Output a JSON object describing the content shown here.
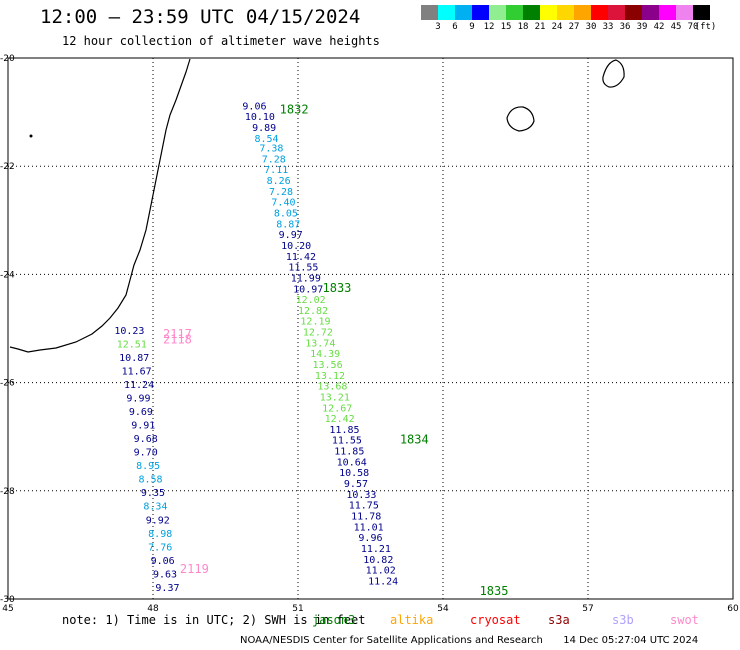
{
  "header": {
    "title": "12:00 — 23:59 UTC 04/15/2024",
    "subtitle": "12 hour collection of altimeter wave heights"
  },
  "legend": {
    "colors": [
      "#808080",
      "#00ffff",
      "#00b0f0",
      "#0000ff",
      "#90ee90",
      "#32cd32",
      "#008000",
      "#ffff00",
      "#ffd700",
      "#ffa500",
      "#ff0000",
      "#dc143c",
      "#8b0000",
      "#8b008b",
      "#ff00ff",
      "#ee82ee",
      "#000000"
    ],
    "labels": [
      "3",
      "6",
      "9",
      "12",
      "15",
      "18",
      "21",
      "24",
      "27",
      "30",
      "33",
      "36",
      "39",
      "42",
      "45",
      "70",
      "(ft)"
    ]
  },
  "axes": {
    "lon_ticks": [
      "45",
      "48",
      "51",
      "54",
      "57",
      "60"
    ],
    "lat_ticks": [
      "-20",
      "-22",
      "-24",
      "-26",
      "-28",
      "-30"
    ]
  },
  "tracks": [
    {
      "label": "1832",
      "label_color": "#008000",
      "x": 50.0,
      "y": -20.95
    },
    {
      "label": "1833",
      "label_color": "#008000",
      "x": 51.3,
      "y": -24.25
    },
    {
      "label": "1834",
      "label_color": "#008000",
      "x": 52.9,
      "y": -27.05
    },
    {
      "label": "1835",
      "label_color": "#008000",
      "x": 54.55,
      "y": -29.85
    },
    {
      "label": "2117",
      "label_color": "#ff88cc",
      "x": 48.0,
      "y": -25.1
    },
    {
      "label": "2118",
      "label_color": "#ff88cc",
      "x": 48.0,
      "y": -25.2
    },
    {
      "label": "2119",
      "label_color": "#ff88cc",
      "x": 48.35,
      "y": -29.45
    }
  ],
  "readings": [
    {
      "value": "9.06",
      "color": "#00008b",
      "x": 49.85,
      "y": -20.95
    },
    {
      "value": "10.10",
      "color": "#00008b",
      "x": 49.9,
      "y": -21.15
    },
    {
      "value": "9.89",
      "color": "#00008b",
      "x": 50.05,
      "y": -21.35
    },
    {
      "value": "8.54",
      "color": "#00a0e0",
      "x": 50.1,
      "y": -21.55
    },
    {
      "value": "7.38",
      "color": "#00a0e0",
      "x": 50.2,
      "y": -21.73
    },
    {
      "value": "7.28",
      "color": "#00a0e0",
      "x": 50.25,
      "y": -21.93
    },
    {
      "value": "7.11",
      "color": "#00a0e0",
      "x": 50.3,
      "y": -22.13
    },
    {
      "value": "8.26",
      "color": "#00a0e0",
      "x": 50.35,
      "y": -22.33
    },
    {
      "value": "7.28",
      "color": "#00a0e0",
      "x": 50.4,
      "y": -22.53
    },
    {
      "value": "7.40",
      "color": "#00a0e0",
      "x": 50.45,
      "y": -22.73
    },
    {
      "value": "8.05",
      "color": "#00a0e0",
      "x": 50.5,
      "y": -22.93
    },
    {
      "value": "8.87",
      "color": "#00a0e0",
      "x": 50.55,
      "y": -23.13
    },
    {
      "value": "9.97",
      "color": "#00008b",
      "x": 50.6,
      "y": -23.33
    },
    {
      "value": "10.20",
      "color": "#00008b",
      "x": 50.65,
      "y": -23.53
    },
    {
      "value": "11.42",
      "color": "#00008b",
      "x": 50.75,
      "y": -23.73
    },
    {
      "value": "11.55",
      "color": "#00008b",
      "x": 50.8,
      "y": -23.93
    },
    {
      "value": "11.99",
      "color": "#00008b",
      "x": 50.85,
      "y": -24.13
    },
    {
      "value": "10.97",
      "color": "#00008b",
      "x": 50.9,
      "y": -24.33
    },
    {
      "value": "12.02",
      "color": "#66dd44",
      "x": 50.95,
      "y": -24.53
    },
    {
      "value": "12.82",
      "color": "#66dd44",
      "x": 51.0,
      "y": -24.73
    },
    {
      "value": "12.19",
      "color": "#66dd44",
      "x": 51.05,
      "y": -24.93
    },
    {
      "value": "12.72",
      "color": "#66dd44",
      "x": 51.1,
      "y": -25.13
    },
    {
      "value": "13.74",
      "color": "#66dd44",
      "x": 51.15,
      "y": -25.33
    },
    {
      "value": "14.39",
      "color": "#66dd44",
      "x": 51.25,
      "y": -25.53
    },
    {
      "value": "13.56",
      "color": "#66dd44",
      "x": 51.3,
      "y": -25.73
    },
    {
      "value": "13.12",
      "color": "#66dd44",
      "x": 51.35,
      "y": -25.93
    },
    {
      "value": "13.68",
      "color": "#66dd44",
      "x": 51.4,
      "y": -26.13
    },
    {
      "value": "13.21",
      "color": "#66dd44",
      "x": 51.45,
      "y": -26.33
    },
    {
      "value": "12.67",
      "color": "#66dd44",
      "x": 51.5,
      "y": -26.53
    },
    {
      "value": "12.42",
      "color": "#66dd44",
      "x": 51.55,
      "y": -26.73
    },
    {
      "value": "11.85",
      "color": "#00008b",
      "x": 51.65,
      "y": -26.93
    },
    {
      "value": "11.55",
      "color": "#00008b",
      "x": 51.7,
      "y": -27.13
    },
    {
      "value": "11.85",
      "color": "#00008b",
      "x": 51.75,
      "y": -27.33
    },
    {
      "value": "10.64",
      "color": "#00008b",
      "x": 51.8,
      "y": -27.53
    },
    {
      "value": "10.58",
      "color": "#00008b",
      "x": 51.85,
      "y": -27.73
    },
    {
      "value": "9.57",
      "color": "#00008b",
      "x": 51.95,
      "y": -27.93
    },
    {
      "value": "10.33",
      "color": "#00008b",
      "x": 52.0,
      "y": -28.13
    },
    {
      "value": "11.75",
      "color": "#00008b",
      "x": 52.05,
      "y": -28.33
    },
    {
      "value": "11.78",
      "color": "#00008b",
      "x": 52.1,
      "y": -28.53
    },
    {
      "value": "11.01",
      "color": "#00008b",
      "x": 52.15,
      "y": -28.73
    },
    {
      "value": "9.96",
      "color": "#00008b",
      "x": 52.25,
      "y": -28.93
    },
    {
      "value": "11.21",
      "color": "#00008b",
      "x": 52.3,
      "y": -29.13
    },
    {
      "value": "10.82",
      "color": "#00008b",
      "x": 52.35,
      "y": -29.33
    },
    {
      "value": "11.02",
      "color": "#00008b",
      "x": 52.4,
      "y": -29.53
    },
    {
      "value": "11.24",
      "color": "#00008b",
      "x": 52.45,
      "y": -29.73
    },
    {
      "value": "10.23",
      "color": "#00008b",
      "x": 47.2,
      "y": -25.1
    },
    {
      "value": "12.51",
      "color": "#66dd44",
      "x": 47.25,
      "y": -25.35
    },
    {
      "value": "10.87",
      "color": "#00008b",
      "x": 47.3,
      "y": -25.6
    },
    {
      "value": "11.67",
      "color": "#00008b",
      "x": 47.35,
      "y": -25.85
    },
    {
      "value": "11.24",
      "color": "#00008b",
      "x": 47.4,
      "y": -26.1
    },
    {
      "value": "9.99",
      "color": "#00008b",
      "x": 47.45,
      "y": -26.35
    },
    {
      "value": "9.69",
      "color": "#00008b",
      "x": 47.5,
      "y": -26.6
    },
    {
      "value": "9.91",
      "color": "#00008b",
      "x": 47.55,
      "y": -26.85
    },
    {
      "value": "9.68",
      "color": "#00008b",
      "x": 47.6,
      "y": -27.1
    },
    {
      "value": "9.70",
      "color": "#00008b",
      "x": 47.6,
      "y": -27.35
    },
    {
      "value": "8.95",
      "color": "#00a0e0",
      "x": 47.65,
      "y": -27.6
    },
    {
      "value": "8.58",
      "color": "#00a0e0",
      "x": 47.7,
      "y": -27.85
    },
    {
      "value": "9.35",
      "color": "#00008b",
      "x": 47.75,
      "y": -28.1
    },
    {
      "value": "8.34",
      "color": "#00a0e0",
      "x": 47.8,
      "y": -28.35
    },
    {
      "value": "9.92",
      "color": "#00008b",
      "x": 47.85,
      "y": -28.6
    },
    {
      "value": "8.98",
      "color": "#00a0e0",
      "x": 47.9,
      "y": -28.85
    },
    {
      "value": "7.76",
      "color": "#00a0e0",
      "x": 47.9,
      "y": -29.1
    },
    {
      "value": "9.06",
      "color": "#00008b",
      "x": 47.95,
      "y": -29.35
    },
    {
      "value": "9.63",
      "color": "#00008b",
      "x": 48.0,
      "y": -29.6
    },
    {
      "value": "9.37",
      "color": "#00008b",
      "x": 48.05,
      "y": -29.85
    }
  ],
  "footer": {
    "note": "note: 1) Time is in UTC; 2) SWH is in feet",
    "satellites": [
      {
        "name": "jason3",
        "color": "#008000"
      },
      {
        "name": "altika",
        "color": "#ffa500"
      },
      {
        "name": "cryosat",
        "color": "#ff0000"
      },
      {
        "name": "s3a",
        "color": "#8b0000"
      },
      {
        "name": "s3b",
        "color": "#b0a0ff"
      },
      {
        "name": "swot",
        "color": "#ff88cc"
      }
    ],
    "credit": "NOAA/NESDIS Center for Satellite Applications and Research",
    "timestamp": "14 Dec 05:27:04 UTC 2024"
  }
}
